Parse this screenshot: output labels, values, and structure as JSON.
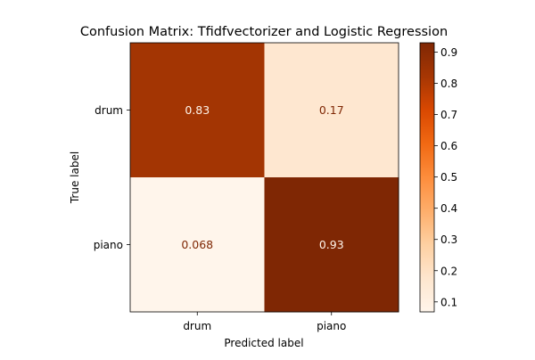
{
  "chart_data": {
    "type": "heatmap",
    "title": "Confusion Matrix: Tfidfvectorizer and Logistic Regression",
    "xlabel": "Predicted label",
    "ylabel": "True label",
    "x_categories": [
      "drum",
      "piano"
    ],
    "y_categories": [
      "drum",
      "piano"
    ],
    "values": [
      [
        0.83,
        0.17
      ],
      [
        0.068,
        0.93
      ]
    ],
    "cell_labels": [
      [
        "0.83",
        "0.17"
      ],
      [
        "0.068",
        "0.93"
      ]
    ],
    "colormap": "Oranges",
    "colorbar": {
      "range": [
        0.068,
        0.93
      ],
      "ticks": [
        0.1,
        0.2,
        0.3,
        0.4,
        0.5,
        0.6,
        0.7,
        0.8,
        0.9
      ],
      "tick_labels": [
        "0.1",
        "0.2",
        "0.3",
        "0.4",
        "0.5",
        "0.6",
        "0.7",
        "0.8",
        "0.9"
      ]
    },
    "grid": false
  }
}
